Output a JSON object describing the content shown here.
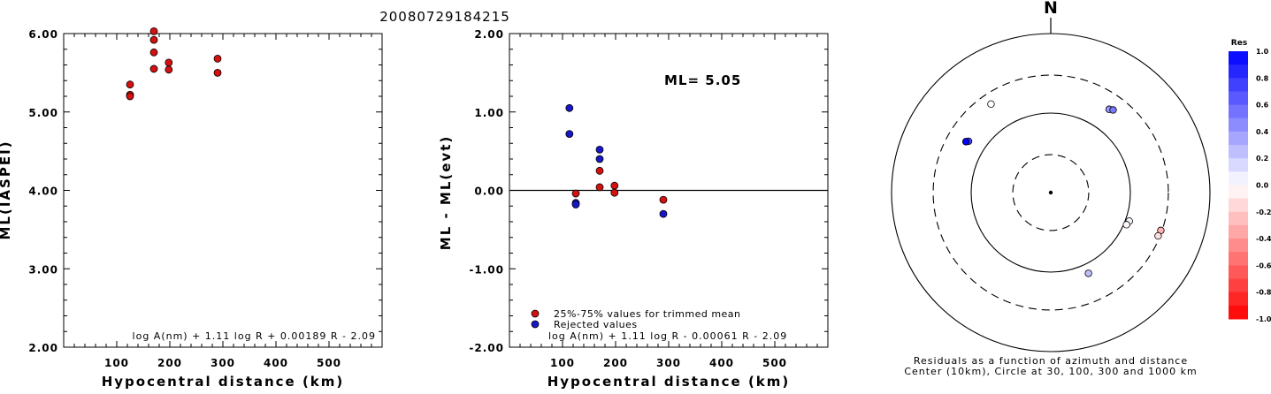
{
  "title": "20080729184215",
  "colors": {
    "accepted": "#d51010",
    "rejected": "#1717c9"
  },
  "chart_data": [
    {
      "type": "scatter",
      "name": "ml-vs-distance",
      "xlabel": "Hypocentral distance (km)",
      "ylabel": "ML(IASPEI)",
      "xlim": [
        0,
        600
      ],
      "ylim": [
        2.0,
        6.0
      ],
      "xticks": [
        "100",
        "200",
        "300",
        "400",
        "500"
      ],
      "yticks": [
        "2.00",
        "3.00",
        "4.00",
        "5.00",
        "6.00"
      ],
      "formula": "log A(nm) + 1.11 log R + 0.00189 R - 2.09",
      "points": [
        {
          "x": 125,
          "y": 5.35
        },
        {
          "x": 125,
          "y": 5.22
        },
        {
          "x": 125,
          "y": 5.2
        },
        {
          "x": 170,
          "y": 6.03
        },
        {
          "x": 170,
          "y": 5.92
        },
        {
          "x": 170,
          "y": 5.76
        },
        {
          "x": 170,
          "y": 5.55
        },
        {
          "x": 198,
          "y": 5.63
        },
        {
          "x": 198,
          "y": 5.54
        },
        {
          "x": 290,
          "y": 5.68
        },
        {
          "x": 290,
          "y": 5.5
        }
      ]
    },
    {
      "type": "scatter",
      "name": "residual-vs-distance",
      "xlabel": "Hypocentral distance (km)",
      "ylabel": "ML - ML(evt)",
      "xlim": [
        0,
        600
      ],
      "ylim": [
        -2.0,
        2.0
      ],
      "xticks": [
        "100",
        "200",
        "300",
        "400",
        "500"
      ],
      "yticks": [
        "-2.00",
        "-1.00",
        "0.00",
        "1.00",
        "2.00"
      ],
      "annotation": "ML= 5.05",
      "formula": "log A(nm) + 1.11 log R - 0.00061 R - 2.09",
      "legend": [
        "25%-75% values for trimmed mean",
        "Rejected values"
      ],
      "accepted": [
        {
          "x": 125,
          "y": -0.04
        },
        {
          "x": 170,
          "y": 0.25
        },
        {
          "x": 170,
          "y": 0.04
        },
        {
          "x": 198,
          "y": 0.06
        },
        {
          "x": 198,
          "y": -0.03
        },
        {
          "x": 290,
          "y": -0.12
        }
      ],
      "rejected": [
        {
          "x": 113,
          "y": 1.05
        },
        {
          "x": 113,
          "y": 0.72
        },
        {
          "x": 125,
          "y": -0.16
        },
        {
          "x": 125,
          "y": -0.18
        },
        {
          "x": 170,
          "y": 0.52
        },
        {
          "x": 170,
          "y": 0.4
        },
        {
          "x": 290,
          "y": -0.3
        }
      ]
    },
    {
      "type": "polar",
      "name": "residual-azimuth-distance",
      "north_label": "N",
      "caption": [
        "Residuals as a function of azimuth and distance",
        "Center (10km), Circle at 30, 100, 300 and 1000 km"
      ],
      "rings_km": [
        30,
        100,
        300,
        1000
      ],
      "ring_styles": [
        "dashed",
        "solid",
        "dashed",
        "solid"
      ],
      "colorbar_title": "Res",
      "colorbar_ticks": [
        "1.0",
        "0.8",
        "0.6",
        "0.4",
        "0.2",
        "0.0",
        "-0.2",
        "-0.4",
        "-0.6",
        "-0.8",
        "-1.0"
      ],
      "stations": [
        {
          "az": -34,
          "dist": 220,
          "res": 0.0
        },
        {
          "az": -58,
          "dist": 165,
          "res": 0.72
        },
        {
          "az": -59,
          "dist": 175,
          "res": 1.05
        },
        {
          "az": 35,
          "dist": 190,
          "res": 0.4
        },
        {
          "az": 37,
          "dist": 200,
          "res": 0.52
        },
        {
          "az": 110,
          "dist": 112,
          "res": 0.04
        },
        {
          "az": 113,
          "dist": 108,
          "res": -0.03
        },
        {
          "az": 109,
          "dist": 290,
          "res": -0.3
        },
        {
          "az": 112,
          "dist": 285,
          "res": -0.12
        },
        {
          "az": 155,
          "dist": 132,
          "res": 0.25
        }
      ]
    }
  ]
}
